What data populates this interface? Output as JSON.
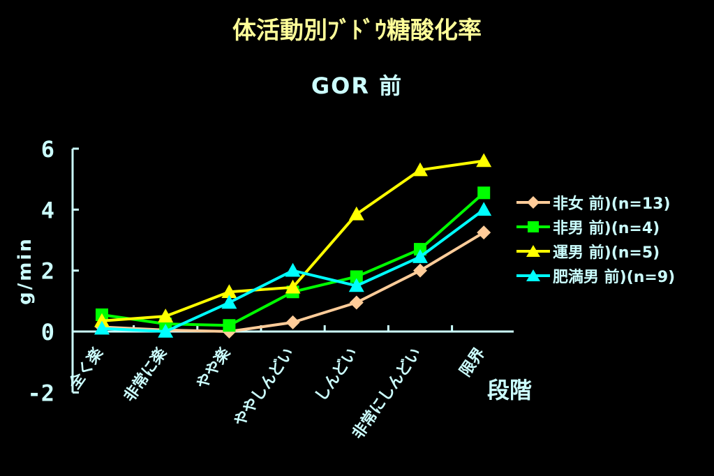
{
  "chart_data": {
    "type": "line",
    "title": "体活動別ﾌﾞﾄﾞｳ糖酸化率",
    "subtitle": "GOR 前",
    "xlabel": "段階",
    "ylabel": "g/min",
    "ylim": [
      -2,
      6
    ],
    "yticks": [
      "-2",
      "0",
      "2",
      "4",
      "6"
    ],
    "categories": [
      "全く楽",
      "非常に楽",
      "やや楽",
      "ややしんどい",
      "しんどい",
      "非常にしんどい",
      "限界"
    ],
    "legend_position": "right",
    "series": [
      {
        "name": "非女 前)(n=13)",
        "color": "#ffcc99",
        "marker": "diamond",
        "values": [
          0.15,
          0.05,
          0.0,
          0.3,
          0.95,
          2.0,
          3.25
        ]
      },
      {
        "name": "非男 前)(n=4)",
        "color": "#00ff00",
        "marker": "square",
        "values": [
          0.55,
          0.25,
          0.2,
          1.3,
          1.8,
          2.7,
          4.55
        ]
      },
      {
        "name": "運男 前)(n=5)",
        "color": "#ffff00",
        "marker": "triangle",
        "values": [
          0.35,
          0.5,
          1.3,
          1.45,
          3.85,
          5.3,
          5.6
        ]
      },
      {
        "name": "肥満男 前)(n=9)",
        "color": "#00ffff",
        "marker": "triangle",
        "values": [
          0.1,
          0.0,
          0.95,
          2.0,
          1.5,
          2.45,
          4.0
        ]
      }
    ]
  },
  "colors": {
    "background": "#000000",
    "axis": "#ccffff",
    "title": "#ffff99"
  }
}
